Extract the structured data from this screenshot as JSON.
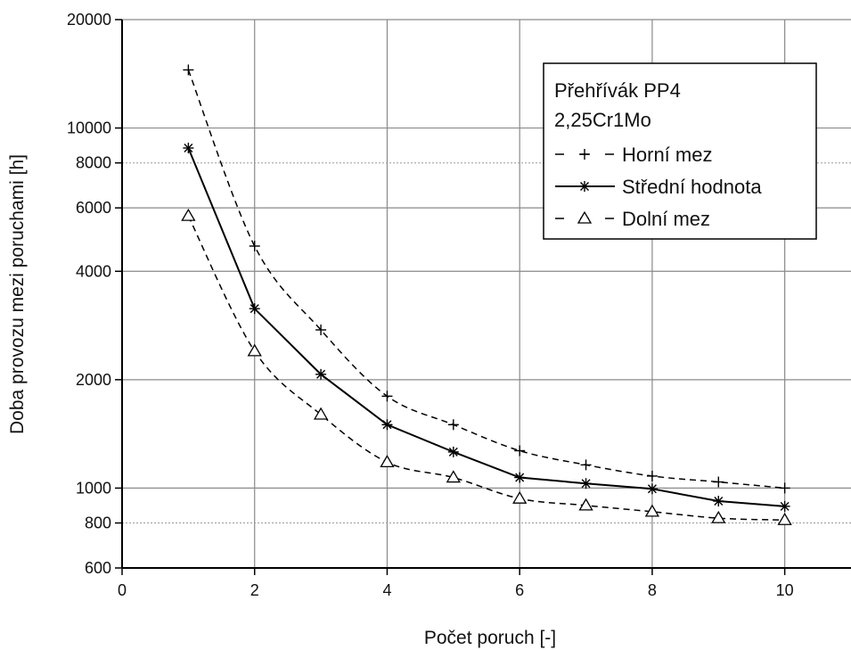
{
  "chart_data": {
    "type": "line",
    "xlabel": "Počet poruch [-]",
    "ylabel": "Doba provozu mezi poruchami [h]",
    "xlim": [
      0,
      11
    ],
    "ylim": [
      600,
      20000
    ],
    "y_scale": "log",
    "x_ticks": [
      0,
      2,
      4,
      6,
      8,
      10
    ],
    "y_ticks": [
      600,
      800,
      1000,
      2000,
      4000,
      6000,
      8000,
      10000,
      20000
    ],
    "y_major_gridlines": [
      1000,
      2000,
      4000,
      6000,
      10000,
      20000
    ],
    "y_minor_gridlines": [
      800,
      8000
    ],
    "grid": true,
    "legend": {
      "placement": "top-right",
      "title_lines": [
        "Přehřívák PP4",
        "2,25Cr1Mo"
      ]
    },
    "x": [
      1,
      2,
      3,
      4,
      5,
      6,
      7,
      8,
      9,
      10
    ],
    "series": [
      {
        "name": "Horní mez",
        "marker": "plus",
        "line": "dashed",
        "values": [
          14500,
          4700,
          2750,
          1800,
          1500,
          1270,
          1160,
          1080,
          1040,
          1000
        ]
      },
      {
        "name": "Střední hodnota",
        "marker": "asterisk",
        "line": "solid",
        "values": [
          8800,
          3150,
          2070,
          1500,
          1260,
          1070,
          1030,
          995,
          920,
          890
        ]
      },
      {
        "name": "Dolní mez",
        "marker": "triangle",
        "line": "dashed",
        "values": [
          5700,
          2400,
          1600,
          1180,
          1070,
          935,
          895,
          860,
          825,
          815
        ]
      }
    ]
  }
}
